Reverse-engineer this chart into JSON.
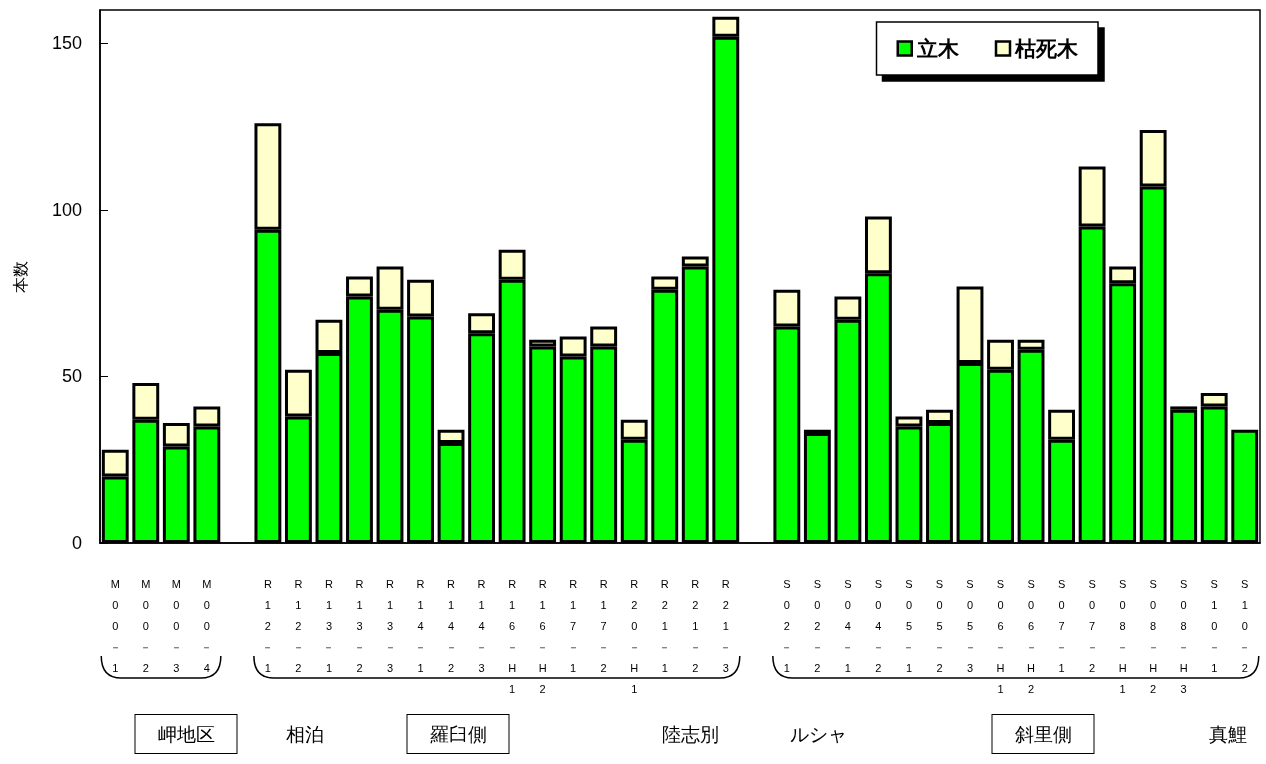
{
  "chart_data": {
    "type": "bar",
    "stacked": true,
    "ylabel": "本数",
    "categories": [
      "M00－1",
      "M00－2",
      "M00－3",
      "M00－4",
      null,
      "R12－1",
      "R12－2",
      "R13－1",
      "R13－2",
      "R13－3",
      "R14－1",
      "R14－2",
      "R14－3",
      "R16－H1",
      "R16－H2",
      "R17－1",
      "R17－2",
      "R20－H1",
      "R21－1",
      "R21－2",
      "R21－3",
      null,
      "S02－1",
      "S02－2",
      "S04－1",
      "S04－2",
      "S05－1",
      "S05－2",
      "S05－3",
      "S06－H1",
      "S06－H2",
      "S07－1",
      "S07－2",
      "S08－H1",
      "S08－H2",
      "S08－H3",
      "S10－1",
      "S10－2"
    ],
    "series": [
      {
        "name": "立木",
        "color": "#00ff00",
        "values": [
          20,
          37,
          29,
          35,
          null,
          94,
          38,
          57,
          74,
          70,
          68,
          30,
          63,
          79,
          59,
          56,
          59,
          31,
          76,
          83,
          152,
          null,
          65,
          33,
          67,
          81,
          35,
          36,
          54,
          52,
          58,
          31,
          95,
          78,
          107,
          40,
          41,
          34
        ]
      },
      {
        "name": "枯死木",
        "color": "#ffffcc",
        "values": [
          8,
          11,
          7,
          6,
          null,
          32,
          14,
          10,
          6,
          13,
          11,
          4,
          6,
          9,
          2,
          6,
          6,
          6,
          4,
          3,
          6,
          null,
          11,
          1,
          7,
          17,
          3,
          4,
          23,
          9,
          3,
          9,
          18,
          5,
          17,
          1,
          4,
          0
        ]
      }
    ],
    "ylim": [
      0,
      160
    ],
    "yticks": [
      0,
      50,
      100,
      150
    ],
    "grid": false,
    "legend": "top right",
    "annotations": [
      "岬地区",
      "相泊",
      "羅臼側",
      "陸志別",
      "ルシャ",
      "斜里側",
      "真鯉"
    ]
  }
}
